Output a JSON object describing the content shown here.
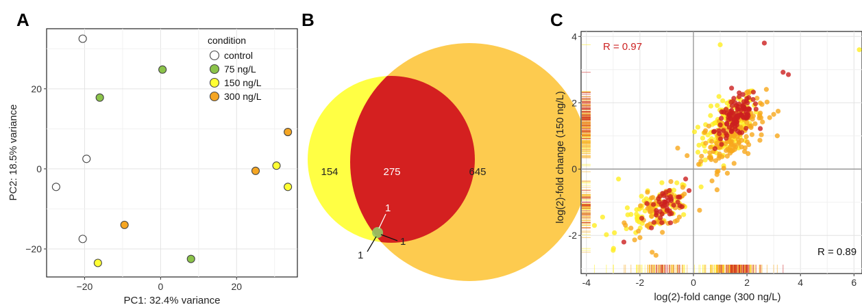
{
  "panels": {
    "A": "A",
    "B": "B",
    "C": "C"
  },
  "chart_data": [
    {
      "type": "scatter",
      "panel": "A",
      "xlabel": "PC1: 32.4% variance",
      "ylabel": "PC2: 18.5% variance",
      "xlim": [
        -30,
        36
      ],
      "ylim": [
        -27,
        35
      ],
      "xticks": [
        -20,
        0,
        20
      ],
      "yticks": [
        -20,
        0,
        20
      ],
      "xtick_labels": [
        "−20",
        "0",
        "20"
      ],
      "ytick_labels": [
        "−20",
        "0",
        "20"
      ],
      "grid": true,
      "legend": {
        "title": "condition",
        "position": "top-right",
        "entries": [
          {
            "name": "control",
            "color": "#ffffff"
          },
          {
            "name": "75 ng/L",
            "color": "#8bc34a"
          },
          {
            "name": "150 ng/L",
            "color": "#ffff33"
          },
          {
            "name": "300 ng/L",
            "color": "#f5a623"
          }
        ]
      },
      "series": [
        {
          "name": "control",
          "color": "#ffffff",
          "points": [
            [
              -20.5,
              32.5
            ],
            [
              -19.5,
              2.5
            ],
            [
              -27.5,
              -4.5
            ],
            [
              -20.5,
              -17.5
            ]
          ]
        },
        {
          "name": "75 ng/L",
          "color": "#8bc34a",
          "points": [
            [
              0.5,
              24.8
            ],
            [
              -16,
              17.8
            ],
            [
              8,
              -22.5
            ]
          ]
        },
        {
          "name": "150 ng/L",
          "color": "#ffff33",
          "points": [
            [
              30.5,
              0.8
            ],
            [
              33.5,
              -4.5
            ],
            [
              -16.5,
              -23.5
            ]
          ]
        },
        {
          "name": "300 ng/L",
          "color": "#f5a623",
          "points": [
            [
              33.5,
              9.2
            ],
            [
              25,
              -0.5
            ],
            [
              -9.5,
              -14
            ]
          ]
        }
      ]
    },
    {
      "type": "venn",
      "panel": "B",
      "sets": [
        {
          "name": "150 ng/L",
          "color": "#ffff44"
        },
        {
          "name": "300 ng/L",
          "color": "#fdcb4f"
        },
        {
          "name": "75 ng/L",
          "color": "#93c966"
        }
      ],
      "regions": [
        {
          "label": "154",
          "value": 154
        },
        {
          "label": "275",
          "value": 275
        },
        {
          "label": "645",
          "value": 645
        },
        {
          "label": "1",
          "value": 1
        },
        {
          "label": "1",
          "value": 1
        },
        {
          "label": "1",
          "value": 1
        }
      ],
      "overlap_color": "#d42020"
    },
    {
      "type": "scatter",
      "panel": "C",
      "xlabel": "log(2)-fold cange (300 ng/L)",
      "ylabel": "log(2)-fold change (150 ng/L)",
      "xlim": [
        -4.2,
        6.3
      ],
      "ylim": [
        -3.15,
        4.15
      ],
      "xticks": [
        -4,
        -2,
        0,
        2,
        4,
        6
      ],
      "yticks": [
        -2,
        0,
        2,
        4
      ],
      "xtick_labels": [
        "-4",
        "-2",
        "0",
        "2",
        "4",
        "6"
      ],
      "ytick_labels": [
        "-2",
        "0",
        "2",
        "4"
      ],
      "grid": true,
      "annotations": [
        {
          "text": "R = 0.97",
          "color": "#cc2222",
          "position": "top-left"
        },
        {
          "text": "R = 0.89",
          "color": "#111111",
          "position": "bottom-right"
        }
      ],
      "series": [
        {
          "name": "yellow points",
          "color": "#ffee22"
        },
        {
          "name": "orange points",
          "color": "#f7a81b"
        },
        {
          "name": "red points",
          "color": "#cc1f1f"
        }
      ],
      "clusters": [
        {
          "color": "#ffee22",
          "cx": 1.3,
          "cy": 1.3,
          "sx": 0.55,
          "sy": 0.5,
          "n": 140
        },
        {
          "color": "#f7a81b",
          "cx": 1.5,
          "cy": 1.1,
          "sx": 0.6,
          "sy": 0.5,
          "n": 160
        },
        {
          "color": "#cc1f1f",
          "cx": 1.6,
          "cy": 1.55,
          "sx": 0.4,
          "sy": 0.35,
          "n": 110
        },
        {
          "color": "#ffee22",
          "cx": -1.4,
          "cy": -1.2,
          "sx": 0.7,
          "sy": 0.35,
          "n": 70
        },
        {
          "color": "#f7a81b",
          "cx": -1.2,
          "cy": -1.2,
          "sx": 0.6,
          "sy": 0.35,
          "n": 70
        },
        {
          "color": "#cc1f1f",
          "cx": -1.1,
          "cy": -1.15,
          "sx": 0.4,
          "sy": 0.3,
          "n": 45
        }
      ],
      "outliers": [
        {
          "x": 2.65,
          "y": 3.8,
          "color": "#cc1f1f"
        },
        {
          "x": 1.0,
          "y": 3.75,
          "color": "#ffee22"
        },
        {
          "x": 6.2,
          "y": 3.6,
          "color": "#ffee22"
        },
        {
          "x": 3.35,
          "y": 2.92,
          "color": "#cc1f1f"
        },
        {
          "x": 3.55,
          "y": 2.85,
          "color": "#cc1f1f"
        },
        {
          "x": 3.0,
          "y": 1.65,
          "color": "#f7a81b"
        },
        {
          "x": -2.6,
          "y": -2.2,
          "color": "#cc1f1f"
        },
        {
          "x": -3.0,
          "y": -2.45,
          "color": "#ffee22"
        },
        {
          "x": -2.8,
          "y": -0.3,
          "color": "#ffee22"
        },
        {
          "x": -3.7,
          "y": -1.7,
          "color": "#ffee22"
        },
        {
          "x": -1.4,
          "y": -2.6,
          "color": "#f7a81b"
        }
      ]
    }
  ]
}
